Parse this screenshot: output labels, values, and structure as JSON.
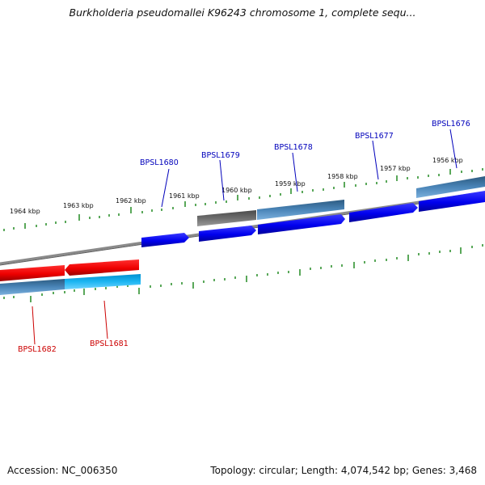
{
  "header": {
    "title": "Burkholderia pseudomallei K96243 chromosome 1, complete sequ..."
  },
  "footer": {
    "accession": "Accession: NC_006350",
    "summary": "Topology: circular; Length: 4,074,542 bp; Genes: 3,468"
  },
  "colors": {
    "forward_label": "#0000bb",
    "reverse_label": "#cc0000",
    "tick": "#228b22",
    "backbone": "#8a8a8a",
    "forward_gene": "#0000ee",
    "reverse_gene": "#ee0000"
  },
  "scale": {
    "unit": "kbp",
    "labels": [
      "1964 kbp",
      "1963 kbp",
      "1962 kbp",
      "1961 kbp",
      "1960 kbp",
      "1959 kbp",
      "1958 kbp",
      "1957 kbp",
      "1956 kbp"
    ]
  },
  "genes": {
    "forward": [
      "BPSL1680",
      "BPSL1679",
      "BPSL1678",
      "BPSL1677",
      "BPSL1676"
    ],
    "reverse": [
      "BPSL1682",
      "BPSL1681"
    ]
  }
}
